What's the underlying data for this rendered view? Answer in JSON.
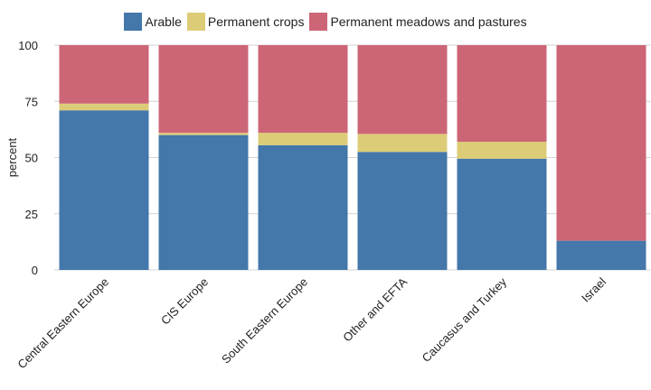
{
  "chart_data": {
    "type": "bar",
    "stacked": true,
    "categories": [
      "Central Eastern Europe",
      "CIS Europe",
      "South Eastern Europe",
      "Other and EFTA",
      "Caucasus and Turkey",
      "Israel"
    ],
    "series": [
      {
        "name": "Arable",
        "color": "#4477aa",
        "values": [
          71,
          60,
          55.5,
          52.5,
          49.5,
          13
        ]
      },
      {
        "name": "Permanent crops",
        "color": "#ddcc77",
        "values": [
          3,
          1,
          5.5,
          8,
          7.5,
          0
        ]
      },
      {
        "name": "Permanent meadows and pastures",
        "color": "#cc6677",
        "values": [
          26,
          39,
          39,
          39.5,
          43,
          87
        ]
      }
    ],
    "ylabel": "percent",
    "xlabel": "",
    "ylim": [
      0,
      100
    ],
    "yticks": [
      0,
      25,
      50,
      75,
      100
    ],
    "grid": true,
    "legend_position": "top-center"
  }
}
